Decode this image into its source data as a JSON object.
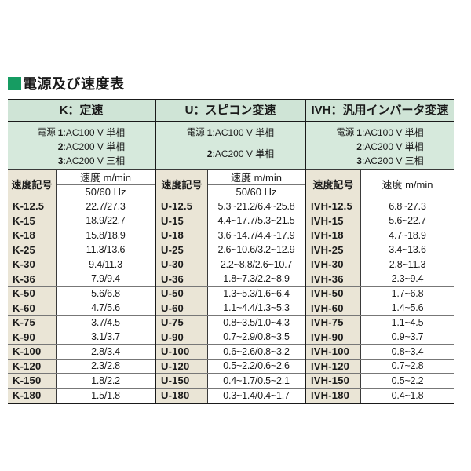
{
  "title": "電源及び速度表",
  "table": {
    "groups": [
      {
        "header": "K：定速",
        "power_label": "電源",
        "power_lines": [
          {
            "num": "1",
            "text": ":AC100 V 単相"
          },
          {
            "num": "2",
            "text": ":AC200 V 単相"
          },
          {
            "num": "3",
            "text": ":AC200 V 三相"
          }
        ],
        "symbol_header": "速度記号",
        "speed_header": "速度 m/min",
        "hz_header": "50/60 Hz",
        "rows": [
          {
            "symbol": "K-12.5",
            "speed": "22.7/27.3"
          },
          {
            "symbol": "K-15",
            "speed": "18.9/22.7"
          },
          {
            "symbol": "K-18",
            "speed": "15.8/18.9"
          },
          {
            "symbol": "K-25",
            "speed": "11.3/13.6"
          },
          {
            "symbol": "K-30",
            "speed": "9.4/11.3"
          },
          {
            "symbol": "K-36",
            "speed": "7.9/9.4"
          },
          {
            "symbol": "K-50",
            "speed": "5.6/6.8"
          },
          {
            "symbol": "K-60",
            "speed": "4.7/5.6"
          },
          {
            "symbol": "K-75",
            "speed": "3.7/4.5"
          },
          {
            "symbol": "K-90",
            "speed": "3.1/3.7"
          },
          {
            "symbol": "K-100",
            "speed": "2.8/3.4"
          },
          {
            "symbol": "K-120",
            "speed": "2.3/2.8"
          },
          {
            "symbol": "K-150",
            "speed": "1.8/2.2"
          },
          {
            "symbol": "K-180",
            "speed": "1.5/1.8"
          }
        ]
      },
      {
        "header": "U：スピコン変速",
        "power_label": "電源",
        "power_lines": [
          {
            "num": "1",
            "text": ":AC100 V 単相"
          },
          {
            "num": "2",
            "text": ":AC200 V 単相"
          }
        ],
        "symbol_header": "速度記号",
        "speed_header": "速度 m/min",
        "hz_header": "50/60 Hz",
        "rows": [
          {
            "symbol": "U-12.5",
            "speed": "5.3~21.2/6.4~25.8"
          },
          {
            "symbol": "U-15",
            "speed": "4.4~17.7/5.3~21.5"
          },
          {
            "symbol": "U-18",
            "speed": "3.6~14.7/4.4~17.9"
          },
          {
            "symbol": "U-25",
            "speed": "2.6~10.6/3.2~12.9"
          },
          {
            "symbol": "U-30",
            "speed": "2.2~8.8/2.6~10.7"
          },
          {
            "symbol": "U-36",
            "speed": "1.8~7.3/2.2~8.9"
          },
          {
            "symbol": "U-50",
            "speed": "1.3~5.3/1.6~6.4"
          },
          {
            "symbol": "U-60",
            "speed": "1.1~4.4/1.3~5.3"
          },
          {
            "symbol": "U-75",
            "speed": "0.8~3.5/1.0~4.3"
          },
          {
            "symbol": "U-90",
            "speed": "0.7~2.9/0.8~3.5"
          },
          {
            "symbol": "U-100",
            "speed": "0.6~2.6/0.8~3.2"
          },
          {
            "symbol": "U-120",
            "speed": "0.5~2.2/0.6~2.6"
          },
          {
            "symbol": "U-150",
            "speed": "0.4~1.7/0.5~2.1"
          },
          {
            "symbol": "U-180",
            "speed": "0.3~1.4/0.4~1.7"
          }
        ]
      },
      {
        "header": "IVH：汎用インバータ変速",
        "power_label": "電源",
        "power_lines": [
          {
            "num": "1",
            "text": ":AC100 V 単相"
          },
          {
            "num": "2",
            "text": ":AC200 V 単相"
          },
          {
            "num": "3",
            "text": ":AC200 V 三相"
          }
        ],
        "symbol_header": "速度記号",
        "speed_header": "速度 m/min",
        "hz_header": null,
        "rows": [
          {
            "symbol": "IVH-12.5",
            "speed": "6.8~27.3"
          },
          {
            "symbol": "IVH-15",
            "speed": "5.6~22.7"
          },
          {
            "symbol": "IVH-18",
            "speed": "4.7~18.9"
          },
          {
            "symbol": "IVH-25",
            "speed": "3.4~13.6"
          },
          {
            "symbol": "IVH-30",
            "speed": "2.8~11.3"
          },
          {
            "symbol": "IVH-36",
            "speed": "2.3~9.4"
          },
          {
            "symbol": "IVH-50",
            "speed": "1.7~6.8"
          },
          {
            "symbol": "IVH-60",
            "speed": "1.4~5.6"
          },
          {
            "symbol": "IVH-75",
            "speed": "1.1~4.5"
          },
          {
            "symbol": "IVH-90",
            "speed": "0.9~3.7"
          },
          {
            "symbol": "IVH-100",
            "speed": "0.8~3.4"
          },
          {
            "symbol": "IVH-120",
            "speed": "0.7~2.8"
          },
          {
            "symbol": "IVH-150",
            "speed": "0.5~2.2"
          },
          {
            "symbol": "IVH-180",
            "speed": "0.4~1.8"
          }
        ]
      }
    ],
    "colors": {
      "title_square": "#169c62",
      "header_green": "#cfe4d6",
      "power_green": "#d6e9dc",
      "symbol_beige": "#eae5d6"
    }
  }
}
